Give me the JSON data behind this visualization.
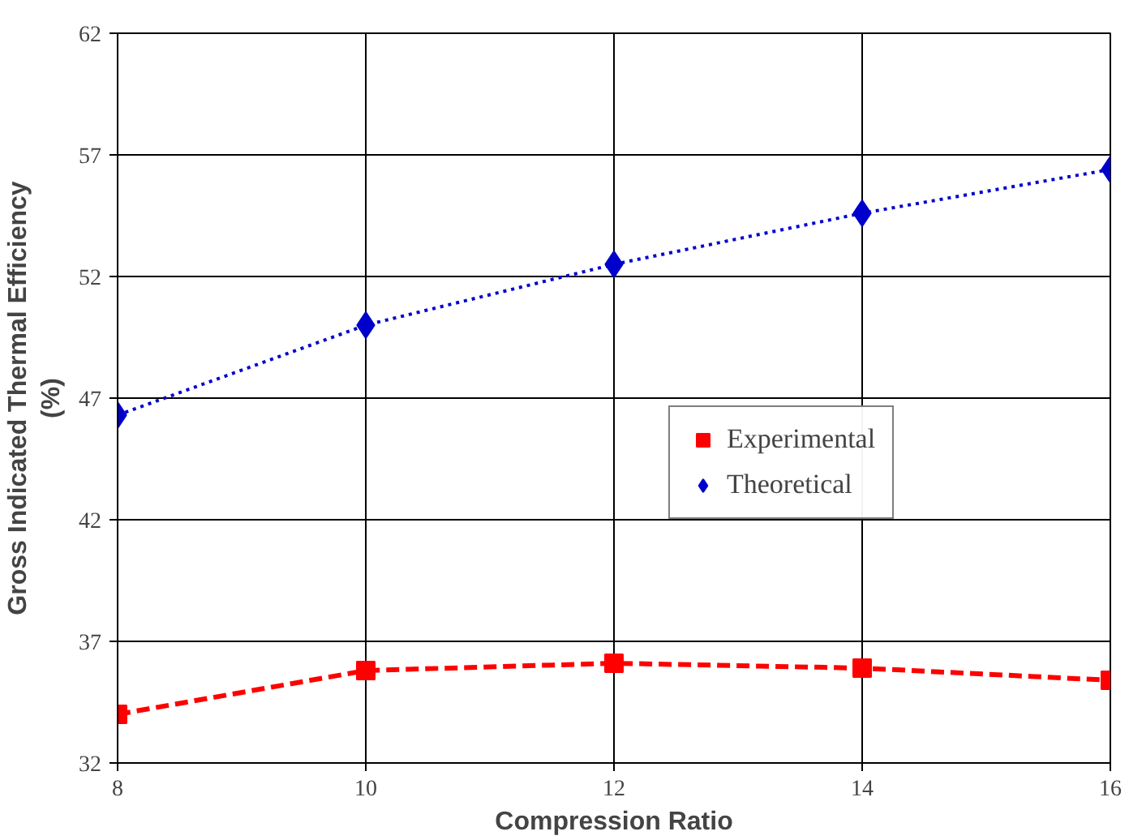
{
  "chart_data": {
    "type": "line",
    "xlabel": "Compression Ratio",
    "ylabel": "Gross Indicated Thermal Efficiency\n(%)",
    "x": [
      8,
      10,
      12,
      14,
      16
    ],
    "series": [
      {
        "name": "Experimental",
        "color": "#ff0000",
        "values": [
          34.0,
          35.8,
          36.1,
          35.9,
          35.4
        ],
        "marker": "square",
        "line_style": "dashed"
      },
      {
        "name": "Theoretical",
        "color": "#0000cc",
        "values": [
          46.3,
          50.0,
          52.5,
          54.6,
          56.4
        ],
        "marker": "diamond",
        "line_style": "dotted"
      }
    ],
    "xlim": [
      8,
      16
    ],
    "xticks": [
      8,
      10,
      12,
      14,
      16
    ],
    "ylim": [
      32,
      62
    ],
    "yticks": [
      32,
      37,
      42,
      47,
      52,
      57,
      62
    ],
    "grid": true,
    "legend": "right"
  }
}
